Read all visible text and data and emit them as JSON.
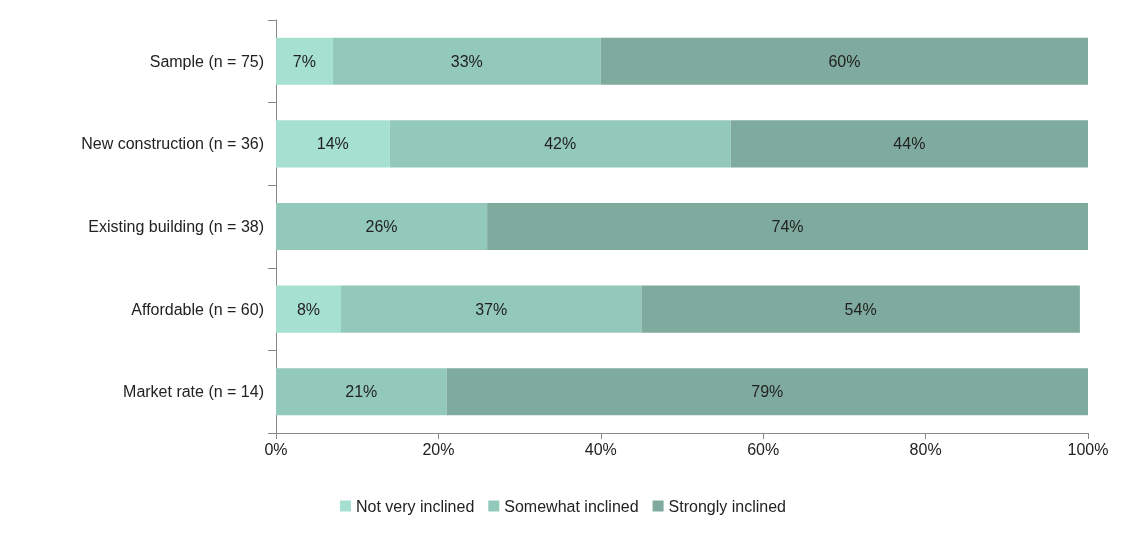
{
  "chart_data": {
    "type": "bar",
    "orientation": "horizontal",
    "stacked": true,
    "categories": [
      "Sample (n = 75)",
      "New construction (n = 36)",
      "Existing building (n = 38)",
      "Affordable (n = 60)",
      "Market rate (n = 14)"
    ],
    "series": [
      {
        "name": "Not very inclined",
        "color": "#a6e0d1",
        "values": [
          7,
          14,
          null,
          8,
          null
        ],
        "value_labels": [
          "7%",
          "14%",
          null,
          "8%",
          null
        ]
      },
      {
        "name": "Somewhat inclined",
        "color": "#93c9ba",
        "values": [
          33,
          42,
          26,
          37,
          21
        ],
        "value_labels": [
          "33%",
          "42%",
          "26%",
          "37%",
          "21%"
        ]
      },
      {
        "name": "Strongly inclined",
        "color": "#7fab9e",
        "values": [
          60,
          44,
          74,
          54,
          79
        ],
        "value_labels": [
          "60%",
          "44%",
          "74%",
          "54%",
          "79%"
        ]
      }
    ],
    "xlim": [
      0,
      100
    ],
    "xticks": [
      {
        "value": 0,
        "label": "0%"
      },
      {
        "value": 20,
        "label": "20%"
      },
      {
        "value": 40,
        "label": "40%"
      },
      {
        "value": 60,
        "label": "60%"
      },
      {
        "value": 80,
        "label": "80%"
      },
      {
        "value": 100,
        "label": "100%"
      }
    ],
    "legend": "bottom",
    "grid": false
  }
}
